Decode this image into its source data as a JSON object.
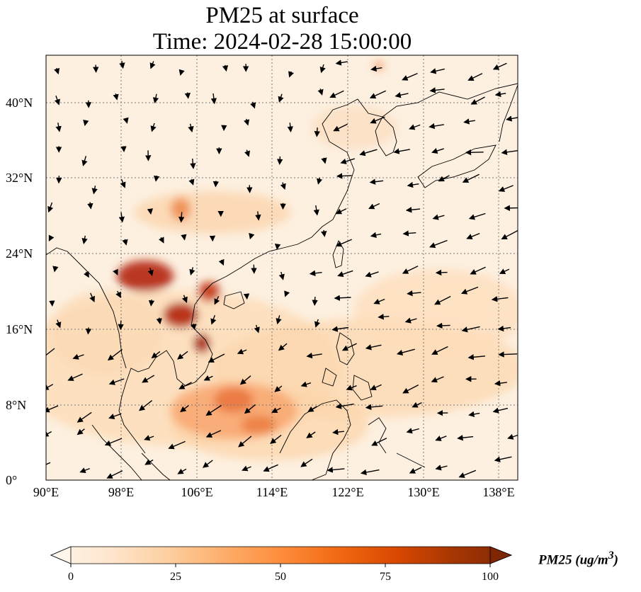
{
  "title": {
    "line1": "PM25 at surface",
    "line2": "Time: 2024-02-28 15:00:00"
  },
  "map": {
    "lon_range": [
      90,
      140
    ],
    "lat_range": [
      0,
      44
    ],
    "gridlines": true,
    "x_ticks": [
      "90°E",
      "98°E",
      "106°E",
      "114°E",
      "122°E",
      "130°E",
      "138°E"
    ],
    "y_ticks": [
      "0°",
      "8°N",
      "16°N",
      "24°N",
      "32°N",
      "40°N"
    ],
    "variable": "PM25",
    "overlay": "surface wind vectors"
  },
  "colorbar": {
    "label_html": "PM25 (ug/m<sup>3</sup>)",
    "ticks": [
      "0",
      "25",
      "50",
      "75",
      "100"
    ],
    "range": [
      0,
      100
    ],
    "extend": "both",
    "colormap": [
      "#fff5eb",
      "#fee6ce",
      "#fdd0a2",
      "#fdae6b",
      "#fd8d3c",
      "#f16913",
      "#d94801",
      "#a63603",
      "#7f2704"
    ]
  }
}
